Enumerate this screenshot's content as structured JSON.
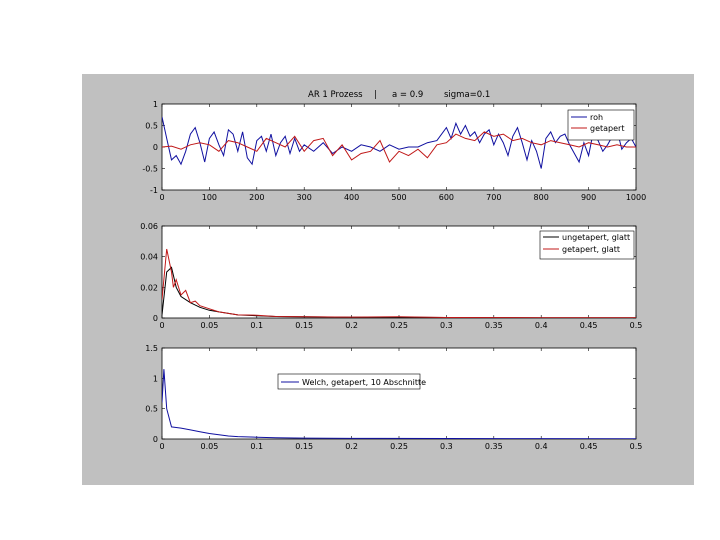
{
  "title_parts": [
    "AR 1 Prozess",
    "|",
    "a = 0.9",
    "sigma=0.1"
  ],
  "colors": {
    "blue": "#1010a0",
    "red": "#c01818",
    "black": "#000000",
    "figure_bg": "#c0c0c0"
  },
  "chart_data": [
    {
      "type": "line",
      "ylim": [
        -1,
        1
      ],
      "xlim": [
        0,
        1000
      ],
      "xticks": [
        "0",
        "100",
        "200",
        "300",
        "400",
        "500",
        "600",
        "700",
        "800",
        "900",
        "1000"
      ],
      "yticks": [
        "-1",
        "-0.5",
        "0",
        "0.5",
        "1"
      ],
      "legend_position": "top-right",
      "series": [
        {
          "name": "roh",
          "color": "blue",
          "x": [
            0,
            10,
            20,
            30,
            40,
            50,
            60,
            70,
            80,
            90,
            100,
            110,
            120,
            130,
            140,
            150,
            160,
            170,
            180,
            190,
            200,
            210,
            220,
            230,
            240,
            250,
            260,
            270,
            280,
            290,
            300,
            320,
            340,
            360,
            380,
            400,
            420,
            440,
            460,
            480,
            500,
            520,
            540,
            560,
            580,
            600,
            610,
            620,
            630,
            640,
            650,
            660,
            670,
            680,
            690,
            700,
            710,
            720,
            730,
            740,
            750,
            760,
            770,
            780,
            790,
            800,
            810,
            820,
            830,
            840,
            850,
            860,
            870,
            880,
            890,
            900,
            910,
            920,
            930,
            940,
            950,
            960,
            970,
            980,
            990,
            1000
          ],
          "y": [
            0.7,
            0.2,
            -0.3,
            -0.2,
            -0.4,
            -0.1,
            0.3,
            0.45,
            0.1,
            -0.35,
            0.2,
            0.35,
            0.05,
            -0.2,
            0.4,
            0.3,
            -0.1,
            0.35,
            -0.25,
            -0.4,
            0.15,
            0.25,
            -0.1,
            0.3,
            -0.2,
            0.1,
            0.25,
            -0.15,
            0.2,
            -0.1,
            0.05,
            -0.1,
            0.1,
            -0.15,
            0.0,
            -0.1,
            0.05,
            0.0,
            -0.1,
            0.05,
            -0.05,
            0.0,
            0.0,
            0.1,
            0.15,
            0.45,
            0.2,
            0.55,
            0.3,
            0.5,
            0.25,
            0.35,
            0.1,
            0.3,
            0.4,
            0.05,
            0.3,
            0.1,
            -0.2,
            0.25,
            0.45,
            0.1,
            -0.3,
            0.15,
            -0.1,
            -0.5,
            0.2,
            0.35,
            0.1,
            0.25,
            0.3,
            0.05,
            -0.15,
            -0.35,
            0.1,
            -0.2,
            0.35,
            0.15,
            -0.1,
            0.05,
            0.25,
            0.4,
            -0.05,
            0.1,
            0.2,
            0.0
          ]
        },
        {
          "name": "getapert",
          "color": "red",
          "x": [
            0,
            20,
            40,
            60,
            80,
            100,
            120,
            140,
            160,
            180,
            200,
            220,
            240,
            260,
            280,
            300,
            320,
            340,
            360,
            380,
            400,
            420,
            440,
            460,
            480,
            500,
            520,
            540,
            560,
            580,
            600,
            620,
            640,
            660,
            680,
            700,
            720,
            740,
            760,
            780,
            800,
            820,
            840,
            860,
            880,
            900,
            920,
            940,
            960,
            980,
            1000
          ],
          "y": [
            0.0,
            0.02,
            -0.05,
            0.05,
            0.1,
            0.05,
            -0.1,
            0.15,
            0.1,
            0.0,
            -0.1,
            0.2,
            0.1,
            0.0,
            0.25,
            -0.1,
            0.15,
            0.2,
            -0.2,
            0.05,
            -0.3,
            -0.15,
            -0.1,
            0.15,
            -0.35,
            -0.1,
            -0.2,
            -0.05,
            -0.25,
            0.05,
            0.1,
            0.3,
            0.2,
            0.15,
            0.35,
            0.25,
            0.3,
            0.15,
            0.2,
            0.1,
            0.05,
            0.15,
            0.1,
            0.05,
            0.0,
            0.1,
            0.05,
            0.0,
            0.05,
            0.0,
            0.0
          ]
        }
      ]
    },
    {
      "type": "line",
      "ylim": [
        0,
        0.06
      ],
      "xlim": [
        0,
        0.5
      ],
      "xticks": [
        "0",
        "0.05",
        "0.1",
        "0.15",
        "0.2",
        "0.25",
        "0.3",
        "0.35",
        "0.4",
        "0.45",
        "0.5"
      ],
      "yticks": [
        "0",
        "0.02",
        "0.04",
        "0.06"
      ],
      "legend_position": "top-right",
      "series": [
        {
          "name": "ungetapert, glatt",
          "color": "black",
          "x": [
            0,
            0.005,
            0.01,
            0.015,
            0.02,
            0.03,
            0.04,
            0.05,
            0.06,
            0.07,
            0.08,
            0.1,
            0.12,
            0.15,
            0.2,
            0.3,
            0.4,
            0.5
          ],
          "y": [
            0.002,
            0.03,
            0.033,
            0.02,
            0.014,
            0.01,
            0.007,
            0.005,
            0.004,
            0.003,
            0.002,
            0.0015,
            0.001,
            0.0008,
            0.0005,
            0.0003,
            0.0002,
            0.0001
          ]
        },
        {
          "name": "getapert, glatt",
          "color": "red",
          "x": [
            0,
            0.005,
            0.01,
            0.012,
            0.015,
            0.02,
            0.025,
            0.03,
            0.035,
            0.04,
            0.05,
            0.06,
            0.07,
            0.08,
            0.1,
            0.12,
            0.15,
            0.2,
            0.25,
            0.3,
            0.4,
            0.5
          ],
          "y": [
            0.012,
            0.045,
            0.03,
            0.02,
            0.025,
            0.015,
            0.018,
            0.01,
            0.011,
            0.008,
            0.006,
            0.004,
            0.003,
            0.002,
            0.0018,
            0.001,
            0.0008,
            0.0006,
            0.0008,
            0.0003,
            0.0002,
            0.0001
          ]
        }
      ]
    },
    {
      "type": "line",
      "ylim": [
        0,
        1.5
      ],
      "xlim": [
        0,
        0.5
      ],
      "xticks": [
        "0",
        "0.05",
        "0.1",
        "0.15",
        "0.2",
        "0.25",
        "0.3",
        "0.35",
        "0.4",
        "0.45",
        "0.5"
      ],
      "yticks": [
        "0",
        "0.5",
        "1",
        "1.5"
      ],
      "legend_position": "top-center",
      "series": [
        {
          "name": "Welch, getapert, 10 Abschnitte",
          "color": "blue",
          "x": [
            0,
            0.002,
            0.005,
            0.01,
            0.015,
            0.02,
            0.03,
            0.04,
            0.05,
            0.06,
            0.07,
            0.08,
            0.1,
            0.12,
            0.15,
            0.2,
            0.3,
            0.4,
            0.5
          ],
          "y": [
            0.6,
            1.15,
            0.5,
            0.2,
            0.19,
            0.18,
            0.15,
            0.12,
            0.09,
            0.07,
            0.05,
            0.04,
            0.03,
            0.02,
            0.015,
            0.01,
            0.008,
            0.006,
            0.005
          ]
        }
      ]
    }
  ]
}
